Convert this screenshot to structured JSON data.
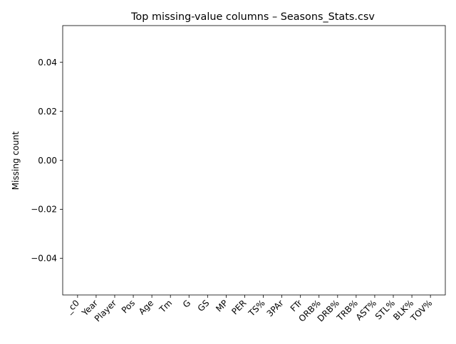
{
  "chart_data": {
    "type": "bar",
    "title": "Top missing-value columns – Seasons_Stats.csv",
    "xlabel": "",
    "ylabel": "Missing count",
    "categories": [
      "_c0",
      "Year",
      "Player",
      "Pos",
      "Age",
      "Tm",
      "G",
      "GS",
      "MP",
      "PER",
      "TS%",
      "3PAr",
      "FTr",
      "ORB%",
      "DRB%",
      "TRB%",
      "AST%",
      "STL%",
      "BLK%",
      "TOV%"
    ],
    "values": [
      0,
      0,
      0,
      0,
      0,
      0,
      0,
      0,
      0,
      0,
      0,
      0,
      0,
      0,
      0,
      0,
      0,
      0,
      0,
      0
    ],
    "ylim": [
      -0.055,
      0.055
    ],
    "yticks": [
      -0.04,
      -0.02,
      0.0,
      0.02,
      0.04
    ],
    "ytick_labels": [
      "−0.04",
      "−0.02",
      "0.00",
      "0.02",
      "0.04"
    ],
    "grid": false,
    "legend": "none",
    "bar_color": "#1f77b4"
  }
}
